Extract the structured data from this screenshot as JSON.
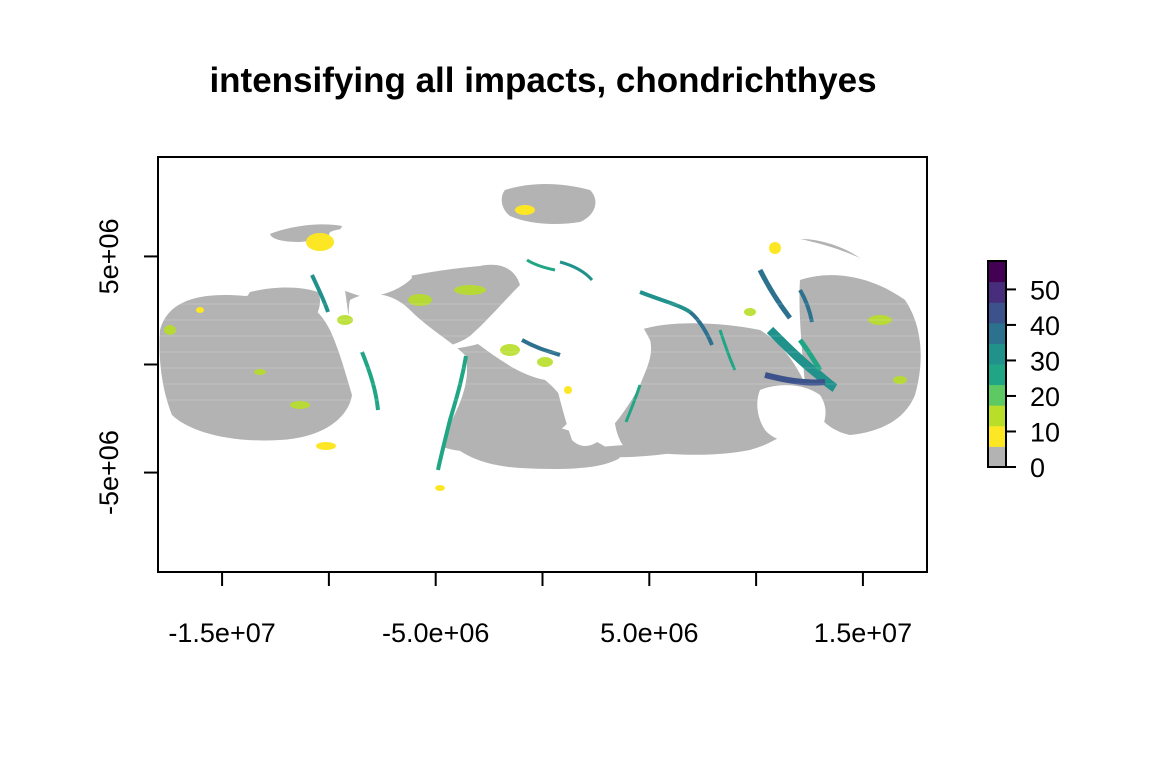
{
  "title": "intensifying all impacts, chondrichthyes",
  "x_axis": {
    "ticks": [
      -15000000.0,
      -10000000.0,
      -5000000.0,
      0,
      5000000.0,
      10000000.0,
      15000000.0
    ],
    "tick_labels": [
      "-1.5e+07",
      "",
      "-5.0e+06",
      "",
      "5.0e+06",
      "",
      "1.5e+07"
    ]
  },
  "y_axis": {
    "ticks": [
      5000000.0,
      0,
      -5000000.0
    ],
    "tick_labels": [
      "5e+06",
      "",
      "-5e+06"
    ]
  },
  "legend": {
    "range": [
      0,
      58
    ],
    "ticks": [
      0,
      10,
      20,
      30,
      40,
      50
    ],
    "tick_labels": [
      "0",
      "10",
      "20",
      "30",
      "40",
      "50"
    ],
    "colors": [
      "#b3b3b3",
      "#fde725",
      "#b8de29",
      "#5ec962",
      "#21a685",
      "#21918c",
      "#2c728e",
      "#3b528b",
      "#472d7b",
      "#440154"
    ]
  },
  "colors": {
    "no_impact": "#b3b3b3",
    "low": "#fde725",
    "mid_low": "#b8de29",
    "mid": "#5ec962",
    "mid_high": "#21a685",
    "high": "#2c728e",
    "very_high": "#3b528b"
  },
  "chart_data": {
    "type": "heatmap",
    "title": "intensifying all impacts, chondrichthyes",
    "xlabel": "",
    "ylabel": "",
    "xlim": [
      -18000000.0,
      18000000.0
    ],
    "ylim": [
      -9600000.0,
      9600000.0
    ],
    "value_range": [
      0,
      58
    ],
    "projection_units": "meters",
    "legend_placement": "right",
    "grid": false
  }
}
